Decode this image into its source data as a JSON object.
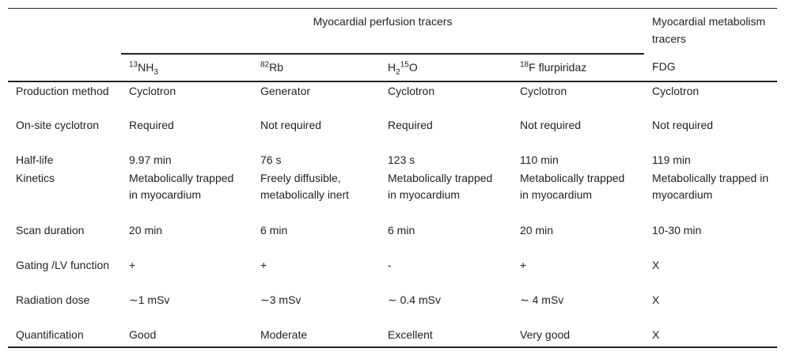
{
  "header": {
    "group_perfusion": "Myocardial perfusion tracers",
    "group_metabolism": "Myocardial metabolism tracers",
    "tracers": [
      {
        "sup": "13",
        "base": "NH",
        "sub": "3",
        "post_sup": "",
        "rest": ""
      },
      {
        "sup": "82",
        "base": "Rb",
        "sub": "",
        "post_sup": "",
        "rest": ""
      },
      {
        "sup": "",
        "base": "H",
        "sub": "2",
        "post_sup": "15",
        "rest": "O"
      },
      {
        "sup": "18",
        "base": "F flurpiridaz",
        "sub": "",
        "post_sup": "",
        "rest": ""
      },
      {
        "sup": "",
        "base": "FDG",
        "sub": "",
        "post_sup": "",
        "rest": ""
      }
    ]
  },
  "rows": [
    {
      "label": "Production method",
      "values": [
        "Cyclotron",
        "Generator",
        "Cyclotron",
        "Cyclotron",
        "Cyclotron"
      ]
    },
    {
      "label": "On-site cyclotron",
      "values": [
        "Required",
        "Not required",
        "Required",
        "Not required",
        "Not required"
      ]
    },
    {
      "label": "Half-life",
      "values": [
        "9.97 min",
        "76 s",
        "123 s",
        "110 min",
        "119 min"
      ]
    },
    {
      "label": "Kinetics",
      "values": [
        "Metabolically trapped in myocardium",
        "Freely diffusible, metabolically inert",
        "Metabolically trapped in myocardium",
        "Metabolically trapped in myocardium",
        "Metabolically trapped in myocardium"
      ]
    },
    {
      "label": "Scan duration",
      "values": [
        "20 min",
        "6 min",
        "6 min",
        "20 min",
        "10-30 min"
      ]
    },
    {
      "label": "Gating /LV function",
      "values": [
        "+",
        "+",
        "-",
        "+",
        "X"
      ]
    },
    {
      "label": "Radiation dose",
      "values": [
        "∼1 mSv",
        "∼3 mSv",
        "∼ 0.4 mSv",
        "∼ 4 mSv",
        "X"
      ]
    },
    {
      "label": "Quantification",
      "values": [
        "Good",
        "Moderate",
        "Excellent",
        "Very good",
        "X"
      ]
    }
  ]
}
